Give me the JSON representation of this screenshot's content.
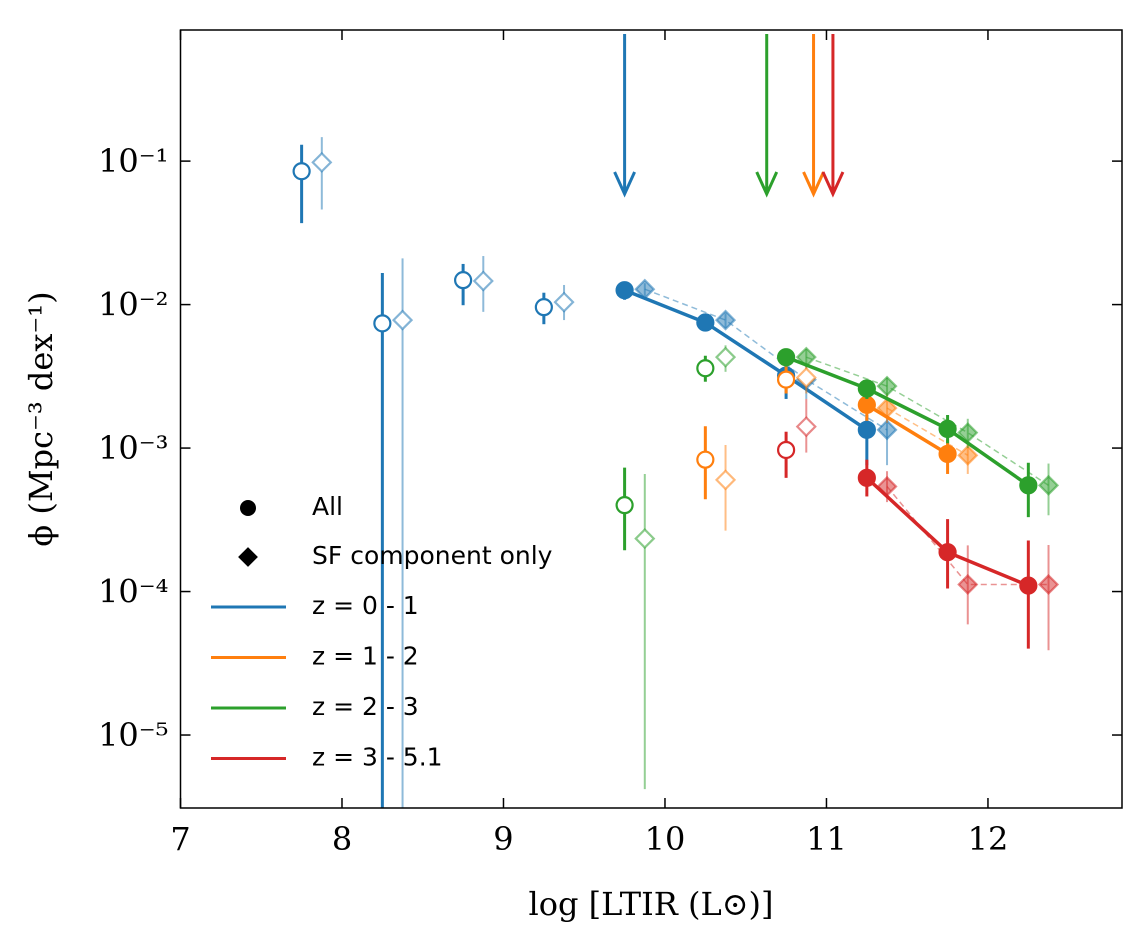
{
  "chart_data": {
    "type": "scatter",
    "x_label": "log [LTIR (L⊙)]",
    "y_label": "ϕ (Mpc⁻³ dex⁻¹)",
    "xlim": [
      7,
      12.83
    ],
    "ylim": [
      3.1e-06,
      0.82
    ],
    "log_y": true,
    "xticks": [
      7,
      8,
      9,
      10,
      11,
      12
    ],
    "yticks": [
      {
        "value": 0.1,
        "label": "10⁻¹"
      },
      {
        "value": 0.01,
        "label": "10⁻²"
      },
      {
        "value": 0.001,
        "label": "10⁻³"
      },
      {
        "value": 0.0001,
        "label": "10⁻⁴"
      },
      {
        "value": 1e-05,
        "label": "10⁻⁵"
      }
    ],
    "legend": "lower left",
    "legend_markers": [
      "All",
      "SF component only"
    ],
    "series": [
      {
        "name": "z = 0 - 1",
        "color": "#1f77b4",
        "limit": 9.75,
        "all": {
          "x": [
            7.75,
            8.25,
            8.75,
            9.25,
            9.75,
            10.25,
            10.75,
            11.25
          ],
          "values": [
            0.085,
            0.0074,
            0.0148,
            0.0096,
            0.0126,
            0.0075,
            0.0032,
            0.00134
          ],
          "low": [
            0.037,
            1e-06,
            0.0099,
            0.0073,
            0.0108,
            0.0065,
            0.0022,
            0.00076
          ],
          "high": [
            0.13,
            0.0166,
            0.0192,
            0.0121,
            0.0139,
            0.0086,
            0.0038,
            0.0017
          ]
        },
        "sf": {
          "x": [
            7.875,
            8.375,
            8.875,
            9.375,
            9.875,
            10.375,
            10.875,
            11.375
          ],
          "values": [
            0.098,
            0.0078,
            0.0146,
            0.0104,
            0.0128,
            0.0078,
            0.003,
            0.00134
          ],
          "low": [
            0.046,
            1e-06,
            0.0089,
            0.0078,
            0.0115,
            0.0069,
            0.0022,
            0.00076
          ],
          "high": [
            0.147,
            0.021,
            0.0218,
            0.0137,
            0.0141,
            0.0087,
            0.0037,
            0.0017
          ]
        }
      },
      {
        "name": "z = 1 - 2",
        "color": "#ff7f0e",
        "limit": 10.92,
        "all": {
          "x": [
            10.25,
            10.75,
            11.25,
            11.75
          ],
          "values": [
            0.00083,
            0.003,
            0.002,
            0.00091
          ],
          "low": [
            0.00044,
            0.0024,
            0.00155,
            0.00066
          ],
          "high": [
            0.00142,
            0.0037,
            0.0025,
            0.00115
          ]
        },
        "sf": {
          "x": [
            10.375,
            10.875,
            11.375,
            11.875
          ],
          "values": [
            0.0006,
            0.0031,
            0.0019,
            0.00089
          ],
          "low": [
            0.000266,
            0.0024,
            0.0015,
            0.00066
          ],
          "high": [
            0.00105,
            0.0038,
            0.0024,
            0.00112
          ]
        }
      },
      {
        "name": "z = 2 - 3",
        "color": "#2ca02c",
        "limit": 10.63,
        "all": {
          "x": [
            9.75,
            10.25,
            10.75,
            11.25,
            11.75,
            12.25
          ],
          "values": [
            0.0004,
            0.0036,
            0.0043,
            0.0026,
            0.00136,
            0.00055
          ],
          "low": [
            0.000194,
            0.0029,
            0.0037,
            0.0022,
            0.00108,
            0.00033
          ],
          "high": [
            0.00073,
            0.0044,
            0.0049,
            0.003,
            0.0017,
            0.00079
          ]
        },
        "sf": {
          "x": [
            9.875,
            10.375,
            10.875,
            11.375,
            11.875,
            12.375
          ],
          "values": [
            0.000234,
            0.0043,
            0.0043,
            0.0027,
            0.00128,
            0.00055
          ],
          "low": [
            4.2e-06,
            0.0034,
            0.0037,
            0.0023,
            0.001,
            0.00034
          ],
          "high": [
            0.00066,
            0.0052,
            0.0049,
            0.0031,
            0.0016,
            0.00078
          ]
        }
      },
      {
        "name": "z = 3 - 5.1",
        "color": "#d62728",
        "limit": 11.04,
        "all": {
          "x": [
            10.75,
            11.25,
            11.75,
            12.25
          ],
          "values": [
            0.00097,
            0.00062,
            0.000188,
            0.00011
          ],
          "low": [
            0.00062,
            0.00046,
            0.000105,
            4e-05
          ],
          "high": [
            0.0013,
            0.00083,
            0.00032,
            0.000227
          ]
        },
        "sf": {
          "x": [
            10.875,
            11.375,
            11.875,
            12.375
          ],
          "values": [
            0.00141,
            0.00054,
            0.000112,
            0.000112
          ],
          "low": [
            0.00093,
            0.00042,
            5.9e-05,
            3.9e-05
          ],
          "high": [
            0.0022,
            0.00069,
            0.00021,
            0.000211
          ]
        }
      }
    ]
  }
}
